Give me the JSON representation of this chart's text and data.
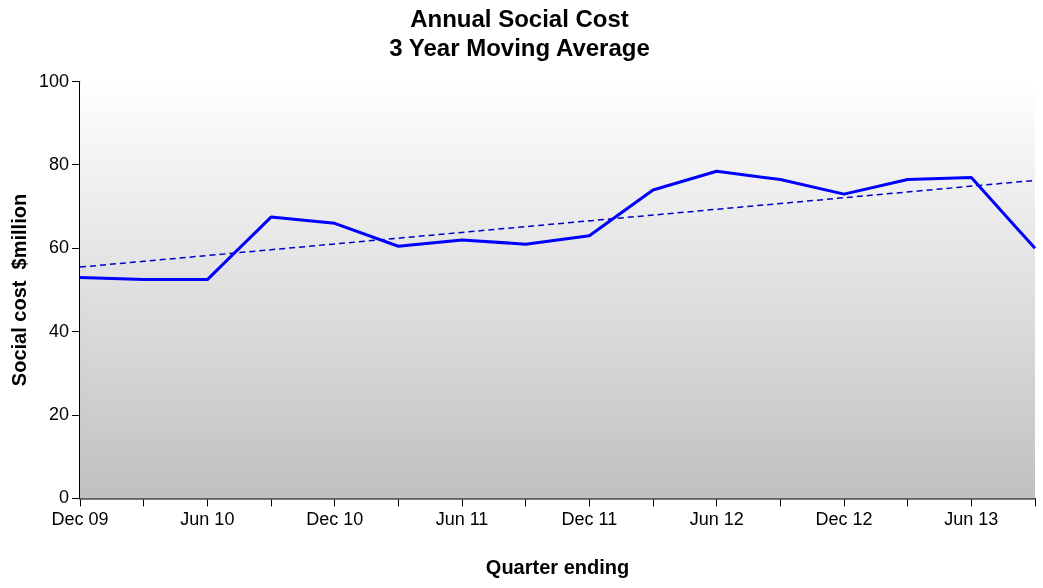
{
  "chart_data": {
    "type": "line",
    "title": "Annual Social Cost\n3 Year Moving Average",
    "xlabel": "Quarter ending",
    "ylabel": "Social cost  $million",
    "categories": [
      "Dec 09",
      null,
      "Jun 10",
      null,
      "Dec 10",
      null,
      "Jun 11",
      null,
      "Dec 11",
      null,
      "Jun 12",
      null,
      "Dec 12",
      null,
      "Jun 13",
      null
    ],
    "series": [
      {
        "color": "#0000ff",
        "values": [
          53,
          52.5,
          52.5,
          67.5,
          66,
          60.5,
          62,
          61,
          63,
          74,
          78.5,
          76.5,
          73,
          76.5,
          77,
          60
        ],
        "line_style": "solid"
      },
      {
        "type": "line",
        "color": "#0000cc",
        "values": [
          55.5,
          null,
          null,
          null,
          null,
          null,
          null,
          null,
          null,
          null,
          null,
          null,
          null,
          null,
          null,
          76.3
        ],
        "line_style": "dashed"
      }
    ],
    "ylim": [
      0,
      100
    ],
    "yticks": [
      0,
      20,
      40,
      60,
      80,
      100
    ],
    "grid": false,
    "legend": false,
    "marker": "none"
  }
}
